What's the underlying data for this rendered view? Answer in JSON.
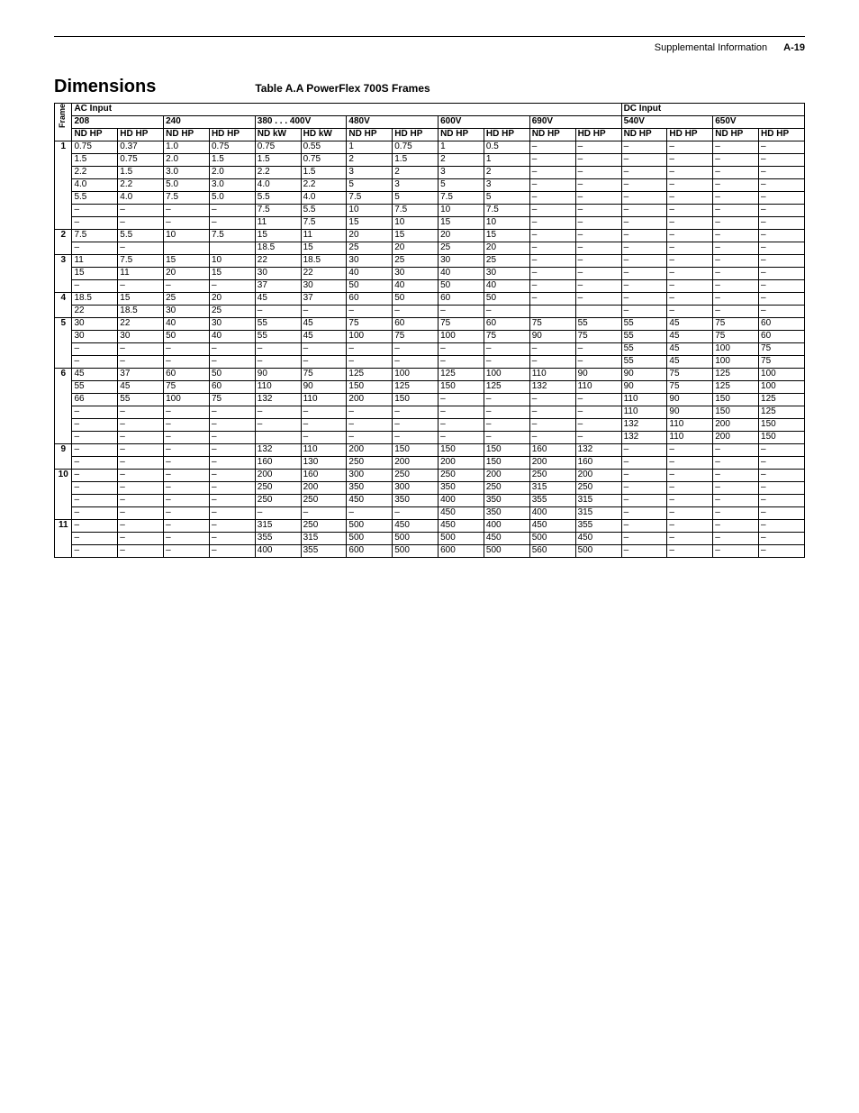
{
  "page_header": {
    "title": "Supplemental Information",
    "page_ref": "A-19"
  },
  "section_title": "Dimensions",
  "table_caption": "Table A.A   PowerFlex 700S Frames",
  "frame_label": "Frame",
  "header": {
    "ac_label": "AC Input",
    "dc_label": "DC Input",
    "ac_voltages": [
      "208",
      "240",
      "380 . . . 400V",
      "480V",
      "600V",
      "690V"
    ],
    "dc_voltages": [
      "540V",
      "650V"
    ],
    "col_labels_ac": [
      "ND HP",
      "HD HP",
      "ND HP",
      "HD HP",
      "ND kW",
      "HD kW",
      "ND HP",
      "HD HP",
      "ND HP",
      "HD HP",
      "ND HP",
      "HD HP"
    ],
    "col_labels_dc": [
      "ND HP",
      "HD HP",
      "ND HP",
      "HD HP"
    ]
  },
  "rows": [
    {
      "frame": "1",
      "c": [
        "0.75",
        "0.37",
        "1.0",
        "0.75",
        "0.75",
        "0.55",
        "1",
        "0.75",
        "1",
        "0.5",
        "–",
        "–",
        "–",
        "–",
        "–",
        "–"
      ]
    },
    {
      "frame": "",
      "c": [
        "1.5",
        "0.75",
        "2.0",
        "1.5",
        "1.5",
        "0.75",
        "2",
        "1.5",
        "2",
        "1",
        "–",
        "–",
        "–",
        "–",
        "–",
        "–"
      ]
    },
    {
      "frame": "",
      "c": [
        "2.2",
        "1.5",
        "3.0",
        "2.0",
        "2.2",
        "1.5",
        "3",
        "2",
        "3",
        "2",
        "–",
        "–",
        "–",
        "–",
        "–",
        "–"
      ]
    },
    {
      "frame": "",
      "c": [
        "4.0",
        "2.2",
        "5.0",
        "3.0",
        "4.0",
        "2.2",
        "5",
        "3",
        "5",
        "3",
        "–",
        "–",
        "–",
        "–",
        "–",
        "–"
      ]
    },
    {
      "frame": "",
      "c": [
        "5.5",
        "4.0",
        "7.5",
        "5.0",
        "5.5",
        "4.0",
        "7.5",
        "5",
        "7.5",
        "5",
        "–",
        "–",
        "–",
        "–",
        "–",
        "–"
      ]
    },
    {
      "frame": "",
      "c": [
        "–",
        "–",
        "–",
        "–",
        "7.5",
        "5.5",
        "10",
        "7.5",
        "10",
        "7.5",
        "–",
        "–",
        "–",
        "–",
        "–",
        "–"
      ]
    },
    {
      "frame": "",
      "c": [
        "–",
        "–",
        "–",
        "–",
        "11",
        "7.5",
        "15",
        "10",
        "15",
        "10",
        "–",
        "–",
        "–",
        "–",
        "–",
        "–"
      ]
    },
    {
      "frame": "2",
      "c": [
        "7.5",
        "5.5",
        "10",
        "7.5",
        "15",
        "11",
        "20",
        "15",
        "20",
        "15",
        "–",
        "–",
        "–",
        "–",
        "–",
        "–"
      ]
    },
    {
      "frame": "",
      "c": [
        "–",
        "–",
        "",
        "",
        "18.5",
        "15",
        "25",
        "20",
        "25",
        "20",
        "–",
        "–",
        "–",
        "–",
        "–",
        "–"
      ]
    },
    {
      "frame": "3",
      "c": [
        "11",
        "7.5",
        "15",
        "10",
        "22",
        "18.5",
        "30",
        "25",
        "30",
        "25",
        "–",
        "–",
        "–",
        "–",
        "–",
        "–"
      ]
    },
    {
      "frame": "",
      "c": [
        "15",
        "11",
        "20",
        "15",
        "30",
        "22",
        "40",
        "30",
        "40",
        "30",
        "–",
        "–",
        "–",
        "–",
        "–",
        "–"
      ]
    },
    {
      "frame": "",
      "c": [
        "–",
        "–",
        "–",
        "–",
        "37",
        "30",
        "50",
        "40",
        "50",
        "40",
        "–",
        "–",
        "–",
        "–",
        "–",
        "–"
      ]
    },
    {
      "frame": "4",
      "c": [
        "18.5",
        "15",
        "25",
        "20",
        "45",
        "37",
        "60",
        "50",
        "60",
        "50",
        "–",
        "–",
        "–",
        "–",
        "–",
        "–"
      ]
    },
    {
      "frame": "",
      "c": [
        "22",
        "18.5",
        "30",
        "25",
        "–",
        "–",
        "–",
        "–",
        "–",
        "–",
        "",
        "",
        "–",
        "–",
        "–",
        "–"
      ]
    },
    {
      "frame": "5",
      "c": [
        "30",
        "22",
        "40",
        "30",
        "55",
        "45",
        "75",
        "60",
        "75",
        "60",
        "75",
        "55",
        "55",
        "45",
        "75",
        "60"
      ]
    },
    {
      "frame": "",
      "c": [
        "30",
        "30",
        "50",
        "40",
        "55",
        "45",
        "100",
        "75",
        "100",
        "75",
        "90",
        "75",
        "55",
        "45",
        "75",
        "60"
      ]
    },
    {
      "frame": "",
      "c": [
        "–",
        "–",
        "–",
        "–",
        "–",
        "–",
        "–",
        "–",
        "–",
        "–",
        "–",
        "–",
        "55",
        "45",
        "100",
        "75"
      ]
    },
    {
      "frame": "",
      "c": [
        "–",
        "–",
        "–",
        "–",
        "–",
        "–",
        "–",
        "–",
        "–",
        "–",
        "–",
        "–",
        "55",
        "45",
        "100",
        "75"
      ]
    },
    {
      "frame": "6",
      "c": [
        "45",
        "37",
        "60",
        "50",
        "90",
        "75",
        "125",
        "100",
        "125",
        "100",
        "110",
        "90",
        "90",
        "75",
        "125",
        "100"
      ]
    },
    {
      "frame": "",
      "c": [
        "55",
        "45",
        "75",
        "60",
        "110",
        "90",
        "150",
        "125",
        "150",
        "125",
        "132",
        "110",
        "90",
        "75",
        "125",
        "100"
      ]
    },
    {
      "frame": "",
      "c": [
        "66",
        "55",
        "100",
        "75",
        "132",
        "110",
        "200",
        "150",
        "–",
        "–",
        "–",
        "–",
        "110",
        "90",
        "150",
        "125"
      ]
    },
    {
      "frame": "",
      "c": [
        "–",
        "–",
        "–",
        "–",
        "–",
        "–",
        "–",
        "–",
        "–",
        "–",
        "–",
        "–",
        "110",
        "90",
        "150",
        "125"
      ]
    },
    {
      "frame": "",
      "c": [
        "–",
        "–",
        "–",
        "–",
        "–",
        "–",
        "–",
        "–",
        "–",
        "–",
        "–",
        "–",
        "132",
        "110",
        "200",
        "150"
      ]
    },
    {
      "frame": "",
      "c": [
        "–",
        "–",
        "–",
        "–",
        "",
        "–",
        "–",
        "–",
        "–",
        "–",
        "–",
        "–",
        "132",
        "110",
        "200",
        "150"
      ]
    },
    {
      "frame": "9",
      "c": [
        "–",
        "–",
        "–",
        "–",
        "132",
        "110",
        "200",
        "150",
        "150",
        "150",
        "160",
        "132",
        "–",
        "–",
        "–",
        "–"
      ]
    },
    {
      "frame": "",
      "c": [
        "–",
        "–",
        "–",
        "–",
        "160",
        "130",
        "250",
        "200",
        "200",
        "150",
        "200",
        "160",
        "–",
        "–",
        "–",
        "–"
      ]
    },
    {
      "frame": "10",
      "c": [
        "–",
        "–",
        "–",
        "–",
        "200",
        "160",
        "300",
        "250",
        "250",
        "200",
        "250",
        "200",
        "–",
        "–",
        "–",
        "–"
      ]
    },
    {
      "frame": "",
      "c": [
        "–",
        "–",
        "–",
        "–",
        "250",
        "200",
        "350",
        "300",
        "350",
        "250",
        "315",
        "250",
        "–",
        "–",
        "–",
        "–"
      ]
    },
    {
      "frame": "",
      "c": [
        "–",
        "–",
        "–",
        "–",
        "250",
        "250",
        "450",
        "350",
        "400",
        "350",
        "355",
        "315",
        "–",
        "–",
        "–",
        "–"
      ]
    },
    {
      "frame": "",
      "c": [
        "–",
        "–",
        "–",
        "–",
        "–",
        "–",
        "–",
        "–",
        "450",
        "350",
        "400",
        "315",
        "–",
        "–",
        "–",
        "–"
      ]
    },
    {
      "frame": "11",
      "c": [
        "–",
        "–",
        "–",
        "–",
        "315",
        "250",
        "500",
        "450",
        "450",
        "400",
        "450",
        "355",
        "–",
        "–",
        "–",
        "–"
      ]
    },
    {
      "frame": "",
      "c": [
        "–",
        "–",
        "–",
        "–",
        "355",
        "315",
        "500",
        "500",
        "500",
        "450",
        "500",
        "450",
        "–",
        "–",
        "–",
        "–"
      ]
    },
    {
      "frame": "",
      "c": [
        "–",
        "–",
        "–",
        "–",
        "400",
        "355",
        "600",
        "500",
        "600",
        "500",
        "560",
        "500",
        "–",
        "–",
        "–",
        "–"
      ]
    }
  ]
}
